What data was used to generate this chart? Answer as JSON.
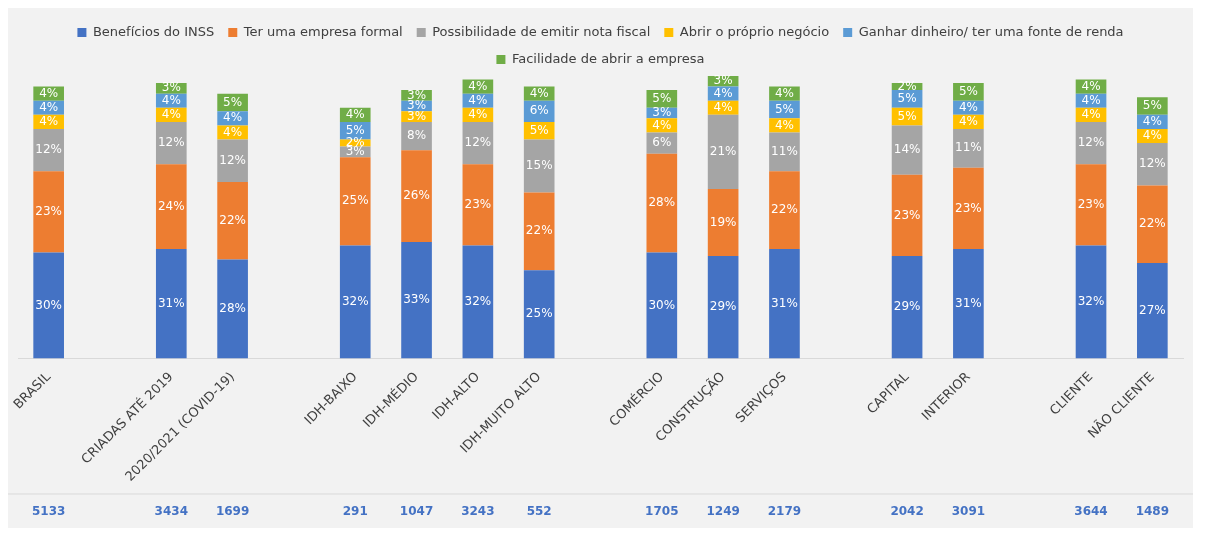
{
  "chart_data": {
    "type": "bar",
    "stacked": true,
    "legend": "top",
    "categories": [
      "BRASIL",
      null,
      "CRIADAS ATÉ 2019",
      "2020/2021 (COVID-19)",
      null,
      "IDH-BAIXO",
      "IDH-MÉDIO",
      "IDH-ALTO",
      "IDH-MUITO ALTO",
      null,
      "COMÉRCIO",
      "CONSTRUÇÃO",
      "SERVIÇOS",
      null,
      "CAPITAL",
      "INTERIOR",
      null,
      "CLIENTE",
      "NÃO CLIENTE"
    ],
    "series": [
      {
        "name": "Benefícios do INSS",
        "color": "#4472c4",
        "values": [
          30,
          null,
          31,
          28,
          null,
          32,
          33,
          32,
          25,
          null,
          30,
          29,
          31,
          null,
          29,
          31,
          null,
          32,
          27
        ],
        "value_labels": [
          "30%",
          null,
          "31%",
          "28%",
          null,
          "32%",
          "33%",
          "32%",
          "25%",
          null,
          "30%",
          "29%",
          "31%",
          null,
          "29%",
          "31%",
          null,
          "32%",
          "27%"
        ]
      },
      {
        "name": "Ter uma empresa formal",
        "color": "#ed7d31",
        "values": [
          23,
          null,
          24,
          22,
          null,
          25,
          26,
          23,
          22,
          null,
          28,
          19,
          22,
          null,
          23,
          23,
          null,
          23,
          22
        ],
        "value_labels": [
          "23%",
          null,
          "24%",
          "22%",
          null,
          "25%",
          "26%",
          "23%",
          "22%",
          null,
          "28%",
          "19%",
          "22%",
          null,
          "23%",
          "23%",
          null,
          "23%",
          "22%"
        ]
      },
      {
        "name": "Possibilidade de emitir nota fiscal",
        "color": "#a5a5a5",
        "values": [
          12,
          null,
          12,
          12,
          null,
          3,
          8,
          12,
          15,
          null,
          6,
          21,
          11,
          null,
          14,
          11,
          null,
          12,
          12
        ],
        "value_labels": [
          "12%",
          null,
          "12%",
          "12%",
          null,
          "3%",
          "8%",
          "12%",
          "15%",
          null,
          "6%",
          "21%",
          "11%",
          null,
          "14%",
          "11%",
          null,
          "12%",
          "12%"
        ]
      },
      {
        "name": "Abrir o próprio negócio",
        "color": "#ffc000",
        "values": [
          4,
          null,
          4,
          4,
          null,
          2,
          3,
          4,
          5,
          null,
          4,
          4,
          4,
          null,
          5,
          4,
          null,
          4,
          4
        ],
        "value_labels": [
          "4%",
          null,
          "4%",
          "4%",
          null,
          "2%",
          "3%",
          "4%",
          "5%",
          null,
          "4%",
          "4%",
          "4%",
          null,
          "5%",
          "4%",
          null,
          "4%",
          "4%"
        ]
      },
      {
        "name": "Ganhar dinheiro/ ter uma fonte de renda",
        "color": "#5b9bd5",
        "values": [
          4,
          null,
          4,
          4,
          null,
          5,
          3,
          4,
          6,
          null,
          3,
          4,
          5,
          null,
          5,
          4,
          null,
          4,
          4
        ],
        "value_labels": [
          "4%",
          null,
          "4%",
          "4%",
          null,
          "5%",
          "3%",
          "4%",
          "6%",
          null,
          "3%",
          "4%",
          "5%",
          null,
          "5%",
          "4%",
          null,
          "4%",
          "4%"
        ]
      },
      {
        "name": "Facilidade de abrir a empresa",
        "color": "#70ad47",
        "values": [
          4,
          null,
          3,
          5,
          null,
          4,
          3,
          4,
          4,
          null,
          5,
          3,
          4,
          null,
          2,
          5,
          null,
          4,
          5
        ],
        "value_labels": [
          "4%",
          null,
          "3%",
          "5%",
          null,
          "4%",
          "3%",
          "4%",
          "4%",
          null,
          "5%",
          "3%",
          "4%",
          null,
          "2%",
          "5%",
          null,
          "4%",
          "5%"
        ]
      }
    ],
    "annotations": [
      "5133",
      "3434",
      "1699",
      "291",
      "1047",
      "3243",
      "552",
      "1705",
      "1249",
      "2179",
      "2042",
      "3091",
      "3644",
      "1489"
    ]
  }
}
